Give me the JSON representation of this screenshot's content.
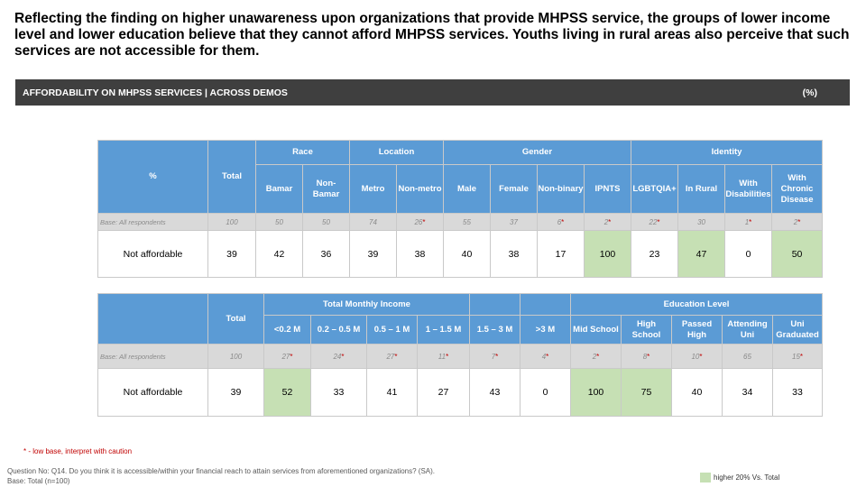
{
  "headline": "Reflecting the finding on higher unawareness upon organizations that provide MHPSS service, the groups of lower income level and lower education believe that they cannot afford MHPSS services. Youths living in rural areas also perceive that such services are not accessible for them.",
  "bar": {
    "title": "AFFORDABILITY ON MHPSS SERVICES | ACROSS DEMOS",
    "unit": "(%)"
  },
  "low_base_marker": "*",
  "colors": {
    "header_blue": "#5b9bd5",
    "highlight_green": "#c6e0b4",
    "bar_dark": "#3f3f3f",
    "low_base_red": "#c00000"
  },
  "table1": {
    "corner": "%",
    "total_label": "Total",
    "groups": [
      "Race",
      "Location",
      "Gender",
      "Identity"
    ],
    "columns": [
      "Bamar",
      "Non-Bamar",
      "Metro",
      "Non-metro",
      "Male",
      "Female",
      "Non-binary",
      "IPNTS",
      "LGBTQIA+",
      "In Rural",
      "With Disabilities",
      "With Chronic Disease"
    ],
    "base_label": "Base: All respondents",
    "base": {
      "total": "100",
      "values": [
        "50",
        "50",
        "74",
        "26",
        "55",
        "37",
        "6",
        "2",
        "22",
        "30",
        "1",
        "2"
      ]
    },
    "row_label": "Not affordable",
    "row": {
      "total": "39",
      "values": [
        "42",
        "36",
        "39",
        "38",
        "40",
        "38",
        "17",
        "100",
        "23",
        "47",
        "0",
        "50"
      ]
    }
  },
  "table2": {
    "total_label": "Total",
    "groups": [
      "Total Monthly Income",
      "Education Level"
    ],
    "columns": [
      "<0.2 M",
      "0.2 – 0.5 M",
      "0.5 – 1 M",
      "1 – 1.5 M",
      "1.5 – 3 M",
      ">3 M",
      "Mid School",
      "High School",
      "Passed High",
      "Attending Uni",
      "Uni Graduated"
    ],
    "base_label": "Base: All respondents",
    "base": {
      "total": "100",
      "values": [
        "27",
        "24",
        "27",
        "11",
        "7",
        "4",
        "2",
        "8",
        "10",
        "65",
        "15"
      ]
    },
    "row_label": "Not affordable",
    "row": {
      "total": "39",
      "values": [
        "52",
        "33",
        "41",
        "27",
        "43",
        "0",
        "100",
        "75",
        "40",
        "34",
        "33"
      ]
    }
  },
  "footnotes": {
    "low_base": "* - low base, interpret with caution",
    "question": "Question No: Q14. Do you think it is accessible/within your financial reach to attain services from aforementioned organizations? (SA).",
    "base": "Base: Total (n=100)",
    "legend": "higher 20% Vs. Total"
  }
}
